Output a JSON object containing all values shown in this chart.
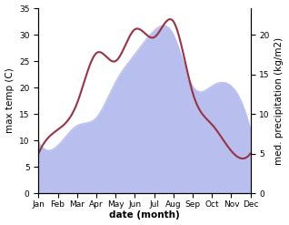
{
  "months": [
    "Jan",
    "Feb",
    "Mar",
    "Apr",
    "May",
    "Jun",
    "Jul",
    "Aug",
    "Sep",
    "Oct",
    "Nov",
    "Dec"
  ],
  "temperature": [
    7.5,
    12.0,
    17.0,
    26.5,
    25.0,
    31.0,
    29.5,
    32.5,
    19.0,
    13.0,
    8.0,
    7.5
  ],
  "precipitation": [
    6.5,
    6.0,
    8.5,
    9.5,
    14.0,
    17.5,
    20.5,
    20.0,
    13.5,
    13.5,
    13.5,
    8.0
  ],
  "temp_color": "#993344",
  "precip_fill_color": "#b8bfee",
  "temp_ylim": [
    0,
    35
  ],
  "precip_ylim": [
    0,
    23.33
  ],
  "xlabel": "date (month)",
  "ylabel_left": "max temp (C)",
  "ylabel_right": "med. precipitation (kg/m2)",
  "right_yticks": [
    0,
    5,
    10,
    15,
    20
  ],
  "left_yticks": [
    0,
    5,
    10,
    15,
    20,
    25,
    30,
    35
  ],
  "bg_color": "#ffffff",
  "label_fontsize": 7.5,
  "tick_fontsize": 6.5
}
